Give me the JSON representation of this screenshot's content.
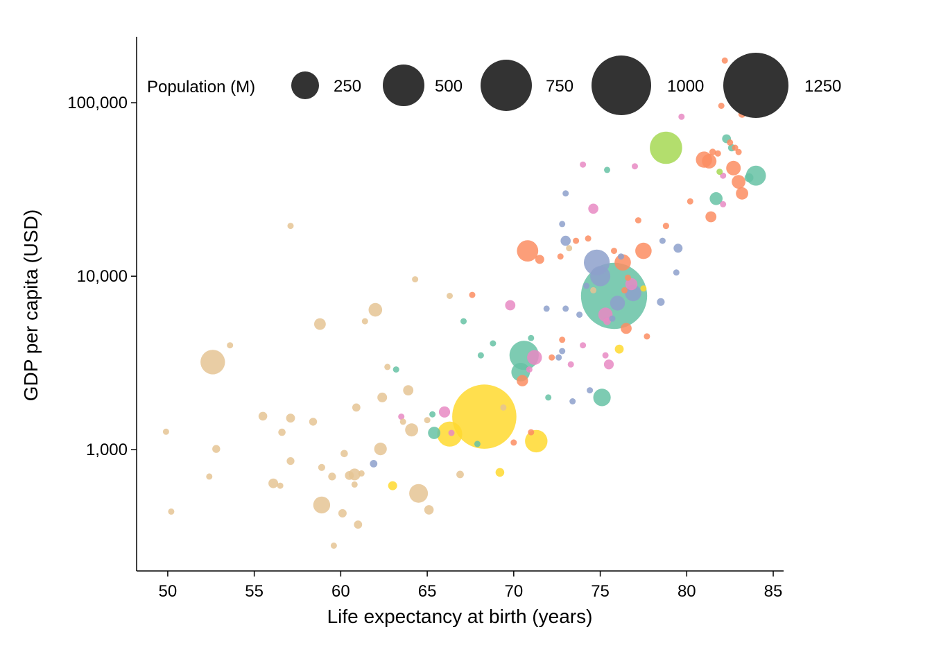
{
  "chart_data": {
    "type": "scatter",
    "title": "",
    "xlabel": "Life expectancy at birth (years)",
    "ylabel": "GDP per capita (USD)",
    "x_ticks": [
      "50",
      "55",
      "60",
      "65",
      "70",
      "75",
      "80",
      "85"
    ],
    "x_tick_values": [
      50,
      55,
      60,
      65,
      70,
      75,
      80,
      85
    ],
    "y_ticks": [
      "1,000",
      "10,000",
      "100,000"
    ],
    "y_tick_values": [
      1000,
      10000,
      100000
    ],
    "xlim": [
      48.2,
      85.6
    ],
    "ylim": [
      200,
      240000
    ],
    "y_scale": "log",
    "grid": false,
    "legend": {
      "title": "Population (M)",
      "placement": "top",
      "labels": [
        "250",
        "500",
        "750",
        "1000",
        "1250"
      ],
      "values": [
        250,
        500,
        750,
        1000,
        1250
      ],
      "color": "#333333"
    },
    "colors": {
      "tan": "#e5c494",
      "yellow": "#ffd92f",
      "green": "#66c2a5",
      "orange": "#fc8d62",
      "blue": "#8da0cb",
      "pink": "#e78ac3",
      "lime": "#a6d854"
    },
    "points": [
      {
        "x": 68.3,
        "y": 1550,
        "pop": 1300,
        "color": "yellow"
      },
      {
        "x": 75.8,
        "y": 7700,
        "pop": 1380,
        "color": "green"
      },
      {
        "x": 78.8,
        "y": 55000,
        "pop": 330,
        "color": "lime"
      },
      {
        "x": 70.6,
        "y": 3500,
        "pop": 270,
        "color": "green"
      },
      {
        "x": 74.8,
        "y": 12000,
        "pop": 210,
        "color": "blue"
      },
      {
        "x": 66.3,
        "y": 1230,
        "pop": 200,
        "color": "yellow"
      },
      {
        "x": 71.3,
        "y": 1120,
        "pop": 160,
        "color": "yellow"
      },
      {
        "x": 52.6,
        "y": 3200,
        "pop": 190,
        "color": "tan"
      },
      {
        "x": 64.5,
        "y": 560,
        "pop": 110,
        "color": "tan"
      },
      {
        "x": 70.8,
        "y": 14000,
        "pop": 145,
        "color": "orange"
      },
      {
        "x": 75.0,
        "y": 10000,
        "pop": 128,
        "color": "blue"
      },
      {
        "x": 84.0,
        "y": 38000,
        "pop": 126,
        "color": "green"
      },
      {
        "x": 75.1,
        "y": 2000,
        "pop": 97,
        "color": "green"
      },
      {
        "x": 70.4,
        "y": 2800,
        "pop": 109,
        "color": "green"
      },
      {
        "x": 58.9,
        "y": 480,
        "pop": 90,
        "color": "tan"
      },
      {
        "x": 81.0,
        "y": 47000,
        "pop": 83,
        "color": "orange"
      },
      {
        "x": 76.3,
        "y": 12000,
        "pop": 84,
        "color": "orange"
      },
      {
        "x": 77.5,
        "y": 14000,
        "pop": 84,
        "color": "orange"
      },
      {
        "x": 76.9,
        "y": 8000,
        "pop": 84,
        "color": "blue"
      },
      {
        "x": 76.0,
        "y": 7000,
        "pop": 70,
        "color": "blue"
      },
      {
        "x": 81.3,
        "y": 46000,
        "pop": 67,
        "color": "orange"
      },
      {
        "x": 82.7,
        "y": 42000,
        "pop": 67,
        "color": "orange"
      },
      {
        "x": 83.0,
        "y": 35000,
        "pop": 60,
        "color": "orange"
      },
      {
        "x": 71.2,
        "y": 3400,
        "pop": 70,
        "color": "pink"
      },
      {
        "x": 75.3,
        "y": 6000,
        "pop": 64,
        "color": "pink"
      },
      {
        "x": 64.1,
        "y": 1300,
        "pop": 54,
        "color": "tan"
      },
      {
        "x": 62.0,
        "y": 6400,
        "pop": 58,
        "color": "tan"
      },
      {
        "x": 65.4,
        "y": 1250,
        "pop": 48,
        "color": "green"
      },
      {
        "x": 81.7,
        "y": 28000,
        "pop": 52,
        "color": "green"
      },
      {
        "x": 83.2,
        "y": 30000,
        "pop": 48,
        "color": "orange"
      },
      {
        "x": 76.8,
        "y": 9000,
        "pop": 46,
        "color": "pink"
      },
      {
        "x": 62.3,
        "y": 1010,
        "pop": 50,
        "color": "tan"
      },
      {
        "x": 58.8,
        "y": 5300,
        "pop": 43,
        "color": "tan"
      },
      {
        "x": 70.5,
        "y": 2500,
        "pop": 41,
        "color": "orange"
      },
      {
        "x": 66.0,
        "y": 1650,
        "pop": 40,
        "color": "pink"
      },
      {
        "x": 60.8,
        "y": 720,
        "pop": 44,
        "color": "tan"
      },
      {
        "x": 81.4,
        "y": 22000,
        "pop": 38,
        "color": "orange"
      },
      {
        "x": 76.5,
        "y": 5000,
        "pop": 38,
        "color": "orange"
      },
      {
        "x": 71.5,
        "y": 12500,
        "pop": 26,
        "color": "orange"
      },
      {
        "x": 73.0,
        "y": 16000,
        "pop": 32,
        "color": "blue"
      },
      {
        "x": 75.5,
        "y": 3100,
        "pop": 31,
        "color": "pink"
      },
      {
        "x": 63.9,
        "y": 2200,
        "pop": 33,
        "color": "tan"
      },
      {
        "x": 62.4,
        "y": 2000,
        "pop": 30,
        "color": "tan"
      },
      {
        "x": 56.1,
        "y": 640,
        "pop": 30,
        "color": "tan"
      },
      {
        "x": 74.6,
        "y": 24500,
        "pop": 32,
        "color": "pink"
      },
      {
        "x": 69.8,
        "y": 6800,
        "pop": 33,
        "color": "pink"
      },
      {
        "x": 79.5,
        "y": 14500,
        "pop": 26,
        "color": "blue"
      },
      {
        "x": 65.1,
        "y": 450,
        "pop": 28,
        "color": "tan"
      },
      {
        "x": 60.5,
        "y": 710,
        "pop": 25,
        "color": "tan"
      },
      {
        "x": 57.1,
        "y": 1520,
        "pop": 25,
        "color": "tan"
      },
      {
        "x": 55.5,
        "y": 1560,
        "pop": 24,
        "color": "tan"
      },
      {
        "x": 60.1,
        "y": 430,
        "pop": 22,
        "color": "tan"
      },
      {
        "x": 76.1,
        "y": 3800,
        "pop": 25,
        "color": "yellow"
      },
      {
        "x": 69.2,
        "y": 740,
        "pop": 24,
        "color": "yellow"
      },
      {
        "x": 63.0,
        "y": 620,
        "pop": 26,
        "color": "yellow"
      },
      {
        "x": 82.3,
        "y": 62000,
        "pop": 25,
        "color": "green"
      },
      {
        "x": 83.6,
        "y": 37000,
        "pop": 25,
        "color": "green"
      },
      {
        "x": 61.0,
        "y": 370,
        "pop": 21,
        "color": "tan"
      },
      {
        "x": 58.4,
        "y": 1450,
        "pop": 20,
        "color": "tan"
      },
      {
        "x": 52.8,
        "y": 1010,
        "pop": 20,
        "color": "tan"
      },
      {
        "x": 60.9,
        "y": 1750,
        "pop": 21,
        "color": "tan"
      },
      {
        "x": 57.1,
        "y": 860,
        "pop": 19,
        "color": "tan"
      },
      {
        "x": 61.9,
        "y": 830,
        "pop": 18,
        "color": "blue"
      },
      {
        "x": 59.5,
        "y": 700,
        "pop": 19,
        "color": "tan"
      },
      {
        "x": 66.9,
        "y": 720,
        "pop": 18,
        "color": "tan"
      },
      {
        "x": 56.6,
        "y": 1260,
        "pop": 17,
        "color": "tan"
      },
      {
        "x": 60.2,
        "y": 950,
        "pop": 17,
        "color": "tan"
      },
      {
        "x": 58.9,
        "y": 790,
        "pop": 16,
        "color": "tan"
      },
      {
        "x": 80.2,
        "y": 27000,
        "pop": 10,
        "color": "orange"
      },
      {
        "x": 78.5,
        "y": 7100,
        "pop": 19,
        "color": "blue"
      },
      {
        "x": 75.4,
        "y": 5500,
        "pop": 18,
        "color": "pink"
      },
      {
        "x": 83.2,
        "y": 86000,
        "pop": 17,
        "color": "orange"
      },
      {
        "x": 82.6,
        "y": 55000,
        "pop": 17,
        "color": "green"
      },
      {
        "x": 81.5,
        "y": 52000,
        "pop": 14,
        "color": "orange"
      },
      {
        "x": 82.5,
        "y": 59000,
        "pop": 11,
        "color": "orange"
      },
      {
        "x": 81.8,
        "y": 51000,
        "pop": 13,
        "color": "orange"
      },
      {
        "x": 82.0,
        "y": 96000,
        "pop": 11,
        "color": "orange"
      },
      {
        "x": 82.1,
        "y": 38000,
        "pop": 12,
        "color": "pink"
      },
      {
        "x": 78.8,
        "y": 19500,
        "pop": 13,
        "color": "orange"
      },
      {
        "x": 77.7,
        "y": 4500,
        "pop": 11,
        "color": "orange"
      },
      {
        "x": 76.2,
        "y": 13000,
        "pop": 11,
        "color": "blue"
      },
      {
        "x": 77.0,
        "y": 43000,
        "pop": 11,
        "color": "pink"
      },
      {
        "x": 74.0,
        "y": 4000,
        "pop": 11,
        "color": "pink"
      },
      {
        "x": 73.8,
        "y": 6000,
        "pop": 10,
        "color": "blue"
      },
      {
        "x": 74.4,
        "y": 2200,
        "pop": 10,
        "color": "blue"
      },
      {
        "x": 73.4,
        "y": 1900,
        "pop": 9,
        "color": "blue"
      },
      {
        "x": 71.9,
        "y": 6500,
        "pop": 9,
        "color": "blue"
      },
      {
        "x": 72.2,
        "y": 3400,
        "pop": 9,
        "color": "orange"
      },
      {
        "x": 72.8,
        "y": 4300,
        "pop": 9,
        "color": "orange"
      },
      {
        "x": 73.0,
        "y": 6500,
        "pop": 10,
        "color": "blue"
      },
      {
        "x": 73.3,
        "y": 3100,
        "pop": 8,
        "color": "pink"
      },
      {
        "x": 74.3,
        "y": 16500,
        "pop": 10,
        "color": "orange"
      },
      {
        "x": 73.6,
        "y": 16000,
        "pop": 9,
        "color": "orange"
      },
      {
        "x": 72.7,
        "y": 13000,
        "pop": 8,
        "color": "orange"
      },
      {
        "x": 75.8,
        "y": 14000,
        "pop": 9,
        "color": "orange"
      },
      {
        "x": 76.6,
        "y": 9800,
        "pop": 8,
        "color": "orange"
      },
      {
        "x": 77.2,
        "y": 21000,
        "pop": 8,
        "color": "orange"
      },
      {
        "x": 67.6,
        "y": 7800,
        "pop": 8,
        "color": "orange"
      },
      {
        "x": 70.0,
        "y": 1100,
        "pop": 8,
        "color": "orange"
      },
      {
        "x": 71.0,
        "y": 1260,
        "pop": 8,
        "color": "orange"
      },
      {
        "x": 72.8,
        "y": 3700,
        "pop": 6,
        "color": "blue"
      },
      {
        "x": 75.3,
        "y": 3500,
        "pop": 7,
        "color": "pink"
      },
      {
        "x": 76.4,
        "y": 8300,
        "pop": 6,
        "color": "orange"
      },
      {
        "x": 75.7,
        "y": 5700,
        "pop": 8,
        "color": "blue"
      },
      {
        "x": 79.4,
        "y": 10500,
        "pop": 6,
        "color": "blue"
      },
      {
        "x": 78.6,
        "y": 16000,
        "pop": 4,
        "color": "blue"
      },
      {
        "x": 82.1,
        "y": 26000,
        "pop": 4,
        "color": "pink"
      },
      {
        "x": 79.7,
        "y": 83000,
        "pop": 5,
        "color": "pink"
      },
      {
        "x": 74.2,
        "y": 8800,
        "pop": 6,
        "color": "blue"
      },
      {
        "x": 73.0,
        "y": 30000,
        "pop": 4,
        "color": "blue"
      },
      {
        "x": 72.8,
        "y": 20000,
        "pop": 5,
        "color": "blue"
      },
      {
        "x": 74.0,
        "y": 44000,
        "pop": 6,
        "color": "pink"
      },
      {
        "x": 75.4,
        "y": 41000,
        "pop": 3,
        "color": "green"
      },
      {
        "x": 68.8,
        "y": 4100,
        "pop": 6,
        "color": "green"
      },
      {
        "x": 67.1,
        "y": 5500,
        "pop": 4,
        "color": "green"
      },
      {
        "x": 66.3,
        "y": 7700,
        "pop": 6,
        "color": "tan"
      },
      {
        "x": 64.3,
        "y": 9600,
        "pop": 6,
        "color": "tan"
      },
      {
        "x": 61.4,
        "y": 5500,
        "pop": 5,
        "color": "tan"
      },
      {
        "x": 63.2,
        "y": 2900,
        "pop": 6,
        "color": "green"
      },
      {
        "x": 63.5,
        "y": 1550,
        "pop": 5,
        "color": "pink"
      },
      {
        "x": 66.4,
        "y": 1250,
        "pop": 4,
        "color": "pink"
      },
      {
        "x": 67.9,
        "y": 1080,
        "pop": 4,
        "color": "green"
      },
      {
        "x": 65.0,
        "y": 1480,
        "pop": 3,
        "color": "tan"
      },
      {
        "x": 72.0,
        "y": 2000,
        "pop": 3,
        "color": "green"
      },
      {
        "x": 69.4,
        "y": 1750,
        "pop": 3,
        "color": "tan"
      },
      {
        "x": 61.2,
        "y": 730,
        "pop": 4,
        "color": "tan"
      },
      {
        "x": 59.6,
        "y": 280,
        "pop": 5,
        "color": "tan"
      },
      {
        "x": 60.8,
        "y": 630,
        "pop": 4,
        "color": "tan"
      },
      {
        "x": 56.5,
        "y": 620,
        "pop": 3,
        "color": "tan"
      },
      {
        "x": 57.1,
        "y": 19500,
        "pop": 2,
        "color": "tan"
      },
      {
        "x": 53.6,
        "y": 4000,
        "pop": 2,
        "color": "tan"
      },
      {
        "x": 50.2,
        "y": 440,
        "pop": 3,
        "color": "tan"
      },
      {
        "x": 49.9,
        "y": 1270,
        "pop": 2,
        "color": "tan"
      },
      {
        "x": 52.4,
        "y": 700,
        "pop": 3,
        "color": "tan"
      },
      {
        "x": 62.7,
        "y": 3000,
        "pop": 2,
        "color": "tan"
      },
      {
        "x": 63.6,
        "y": 1450,
        "pop": 2,
        "color": "tan"
      },
      {
        "x": 68.1,
        "y": 3500,
        "pop": 2,
        "color": "green"
      },
      {
        "x": 65.3,
        "y": 1600,
        "pop": 1,
        "color": "green"
      },
      {
        "x": 71.0,
        "y": 4400,
        "pop": 1,
        "color": "green"
      },
      {
        "x": 77.5,
        "y": 8500,
        "pop": 1,
        "color": "yellow"
      },
      {
        "x": 74.6,
        "y": 8300,
        "pop": 1,
        "color": "tan"
      },
      {
        "x": 82.2,
        "y": 175000,
        "pop": 1,
        "color": "orange"
      },
      {
        "x": 82.8,
        "y": 55000,
        "pop": 1,
        "color": "orange"
      },
      {
        "x": 83.0,
        "y": 52000,
        "pop": 2,
        "color": "orange"
      },
      {
        "x": 72.6,
        "y": 3400,
        "pop": 1,
        "color": "blue"
      },
      {
        "x": 70.9,
        "y": 2900,
        "pop": 1,
        "color": "pink"
      },
      {
        "x": 73.2,
        "y": 14500,
        "pop": 1,
        "color": "tan"
      },
      {
        "x": 81.9,
        "y": 40000,
        "pop": 2,
        "color": "lime"
      }
    ]
  }
}
